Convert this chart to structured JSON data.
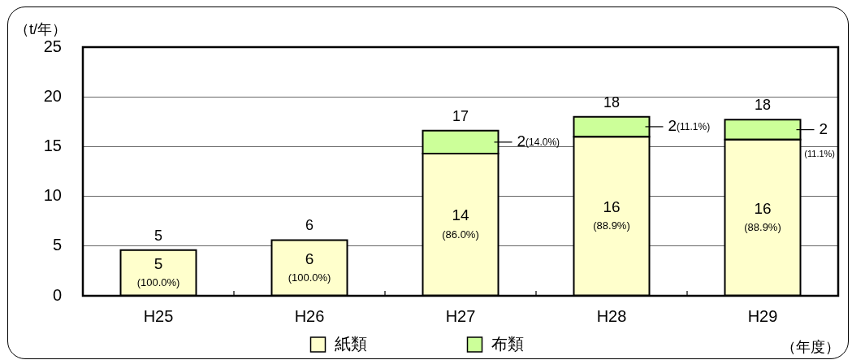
{
  "chart_data": {
    "type": "bar",
    "stacked": true,
    "categories": [
      "H25",
      "H26",
      "H27",
      "H28",
      "H29"
    ],
    "series": [
      {
        "name": "紙類",
        "color": "#ffffcc",
        "values": [
          4.6,
          5.6,
          14.3,
          16.0,
          15.7
        ],
        "value_labels": [
          "5\n(100.0%)",
          "6\n(100.0%)",
          "14\n(86.0%)",
          "16\n(88.9%)",
          "16\n(88.9%)"
        ]
      },
      {
        "name": "布類",
        "color": "#ccff99",
        "values": [
          null,
          null,
          2.3,
          2.0,
          2.0
        ],
        "value_labels": [
          null,
          null,
          "2(14.0%)",
          "2(11.1%)",
          "2\n(11.1%)"
        ]
      }
    ],
    "totals": [
      "5",
      "6",
      "17",
      "18",
      "18"
    ],
    "ylabel": "（t/年）",
    "xlabel": "（年度）",
    "ylim": [
      0,
      25
    ],
    "yticks": [
      0,
      5,
      10,
      15,
      20,
      25
    ],
    "grid": "y",
    "legend": "bottom"
  }
}
